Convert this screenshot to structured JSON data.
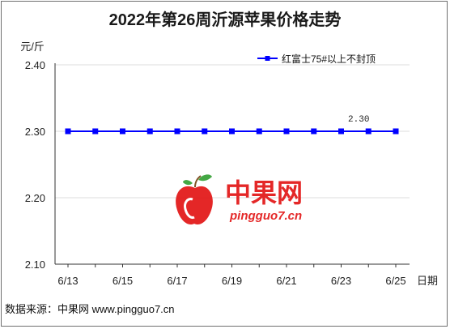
{
  "chart_data": {
    "type": "line",
    "title": "2022年第26周沂源苹果价格走势",
    "ylabel": "元/斤",
    "xlabel": "日期",
    "ylim": [
      2.1,
      2.4
    ],
    "yticks": [
      "2.40",
      "2.30",
      "2.20",
      "2.10"
    ],
    "xtick_labels": [
      "6/13",
      "6/15",
      "6/17",
      "6/19",
      "6/21",
      "6/23",
      "6/25"
    ],
    "x": [
      "6/13",
      "6/14",
      "6/15",
      "6/16",
      "6/17",
      "6/18",
      "6/19",
      "6/20",
      "6/21",
      "6/22",
      "6/23",
      "6/24",
      "6/25"
    ],
    "series": [
      {
        "name": "红富士75#以上不封顶",
        "color": "#0000ff",
        "values": [
          2.3,
          2.3,
          2.3,
          2.3,
          2.3,
          2.3,
          2.3,
          2.3,
          2.3,
          2.3,
          2.3,
          2.3,
          2.3
        ]
      }
    ],
    "data_labels": [
      {
        "x": "6/24",
        "text": "2.30"
      }
    ],
    "grid": "horizontal",
    "legend": "top-right"
  },
  "watermark": {
    "brand_cn": "中果网",
    "brand_en": "pingguo7.cn"
  },
  "footer": {
    "source": "数据来源：中果网 www.pingguo7.cn"
  }
}
